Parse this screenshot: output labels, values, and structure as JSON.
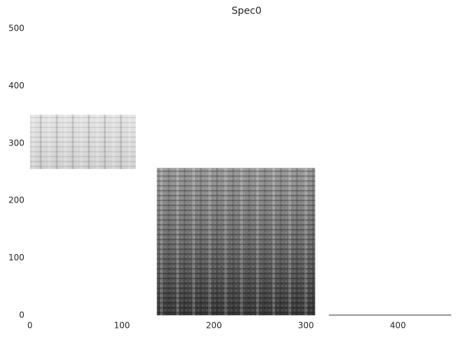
{
  "chart_data": {
    "type": "spectrogram",
    "title": "Spec0",
    "blocks": [
      {
        "x": [
          0,
          115
        ],
        "y": [
          255,
          350
        ]
      },
      {
        "x": [
          138,
          310
        ],
        "y": [
          0,
          257
        ]
      },
      {
        "x": [
          325,
          458
        ],
        "y": [
          0,
          1
        ]
      }
    ],
    "xlim": [
      0,
      458
    ],
    "ylim": [
      0,
      500
    ],
    "xticks": [
      0,
      100,
      200,
      300,
      400
    ],
    "yticks": [
      0,
      100,
      200,
      300,
      400,
      500
    ]
  }
}
